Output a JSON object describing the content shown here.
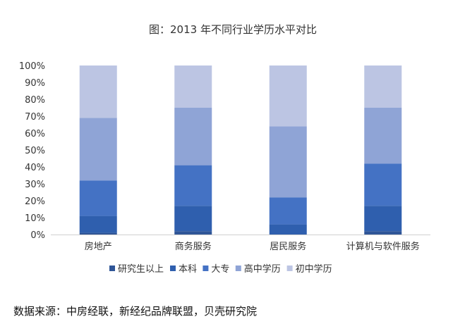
{
  "chart_data": {
    "type": "bar",
    "stacked": true,
    "title": "图：2013 年不同行业学历水平对比",
    "categories": [
      "房地产",
      "商务服务",
      "居民服务",
      "计算机与软件服务"
    ],
    "series": [
      {
        "name": "研究生以上",
        "color": "#2f5597",
        "values": [
          1,
          2,
          0,
          2
        ]
      },
      {
        "name": "本科",
        "color": "#2f5fae",
        "values": [
          10,
          15,
          6,
          15
        ]
      },
      {
        "name": "大专",
        "color": "#4472c4",
        "values": [
          21,
          24,
          16,
          25
        ]
      },
      {
        "name": "高中学历",
        "color": "#8fa4d6",
        "values": [
          37,
          34,
          42,
          33
        ]
      },
      {
        "name": "初中学历",
        "color": "#bcc5e3",
        "values": [
          31,
          25,
          36,
          25
        ]
      }
    ],
    "ylim": [
      0,
      100
    ],
    "yticks": [
      "0%",
      "10%",
      "20%",
      "30%",
      "40%",
      "50%",
      "60%",
      "70%",
      "80%",
      "90%",
      "100%"
    ],
    "grid": false,
    "legend_position": "bottom",
    "xlabel": "",
    "ylabel": ""
  },
  "source_note": "数据来源：中房经联，新经纪品牌联盟，贝壳研究院"
}
